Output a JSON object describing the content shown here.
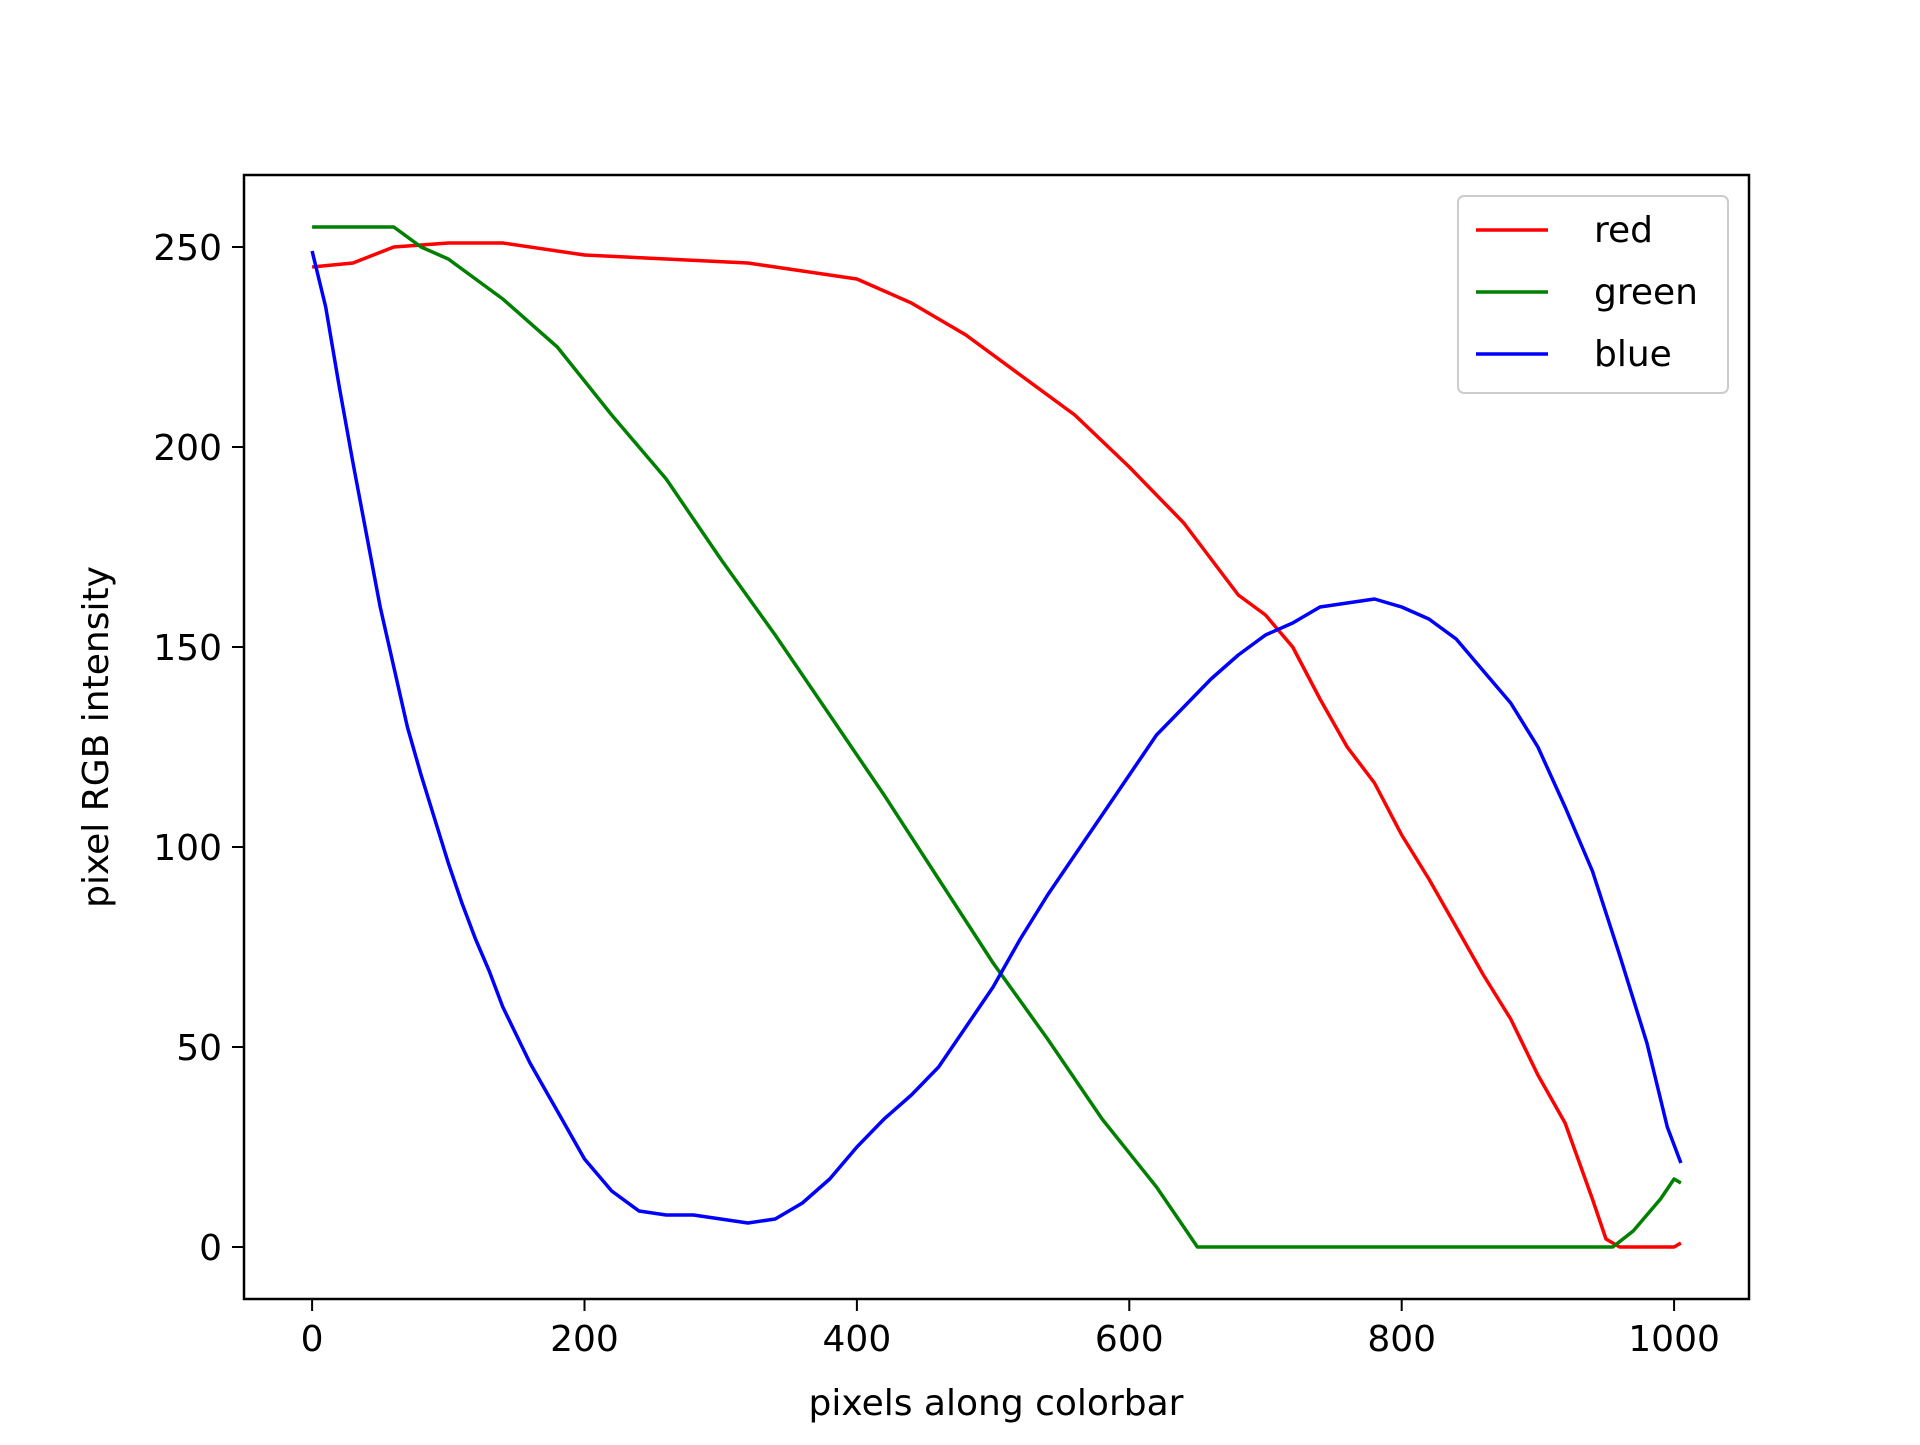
{
  "chart_data": {
    "type": "line",
    "title": "",
    "xlabel": "pixels along colorbar",
    "ylabel": "pixel RGB intensity",
    "xlim": [
      -50,
      1055
    ],
    "ylim": [
      -13,
      268
    ],
    "xticks": [
      0,
      200,
      400,
      600,
      800,
      1000
    ],
    "yticks": [
      0,
      50,
      100,
      150,
      200,
      250
    ],
    "xtick_labels": [
      "0",
      "200",
      "400",
      "600",
      "800",
      "1000"
    ],
    "ytick_labels": [
      "0",
      "50",
      "100",
      "150",
      "200",
      "250"
    ],
    "grid": false,
    "legend": {
      "position": "top-right",
      "entries": [
        "red",
        "green",
        "blue"
      ]
    },
    "series": [
      {
        "name": "red",
        "color": "#ff0000",
        "points": [
          [
            0,
            245
          ],
          [
            30,
            246
          ],
          [
            60,
            250
          ],
          [
            100,
            251
          ],
          [
            140,
            251
          ],
          [
            200,
            248
          ],
          [
            260,
            247
          ],
          [
            320,
            246
          ],
          [
            360,
            244
          ],
          [
            400,
            242
          ],
          [
            440,
            236
          ],
          [
            480,
            228
          ],
          [
            520,
            218
          ],
          [
            560,
            208
          ],
          [
            600,
            195
          ],
          [
            640,
            181
          ],
          [
            680,
            163
          ],
          [
            700,
            158
          ],
          [
            720,
            150
          ],
          [
            740,
            137
          ],
          [
            760,
            125
          ],
          [
            780,
            116
          ],
          [
            800,
            103
          ],
          [
            820,
            92
          ],
          [
            840,
            80
          ],
          [
            860,
            68
          ],
          [
            880,
            57
          ],
          [
            900,
            43
          ],
          [
            920,
            31
          ],
          [
            940,
            12
          ],
          [
            950,
            2
          ],
          [
            960,
            0
          ],
          [
            1000,
            0
          ],
          [
            1005,
            1
          ]
        ]
      },
      {
        "name": "green",
        "color": "#008000",
        "points": [
          [
            0,
            255
          ],
          [
            60,
            255
          ],
          [
            80,
            250
          ],
          [
            100,
            247
          ],
          [
            140,
            237
          ],
          [
            180,
            225
          ],
          [
            220,
            208
          ],
          [
            260,
            192
          ],
          [
            300,
            172
          ],
          [
            340,
            153
          ],
          [
            380,
            133
          ],
          [
            420,
            113
          ],
          [
            460,
            92
          ],
          [
            500,
            71
          ],
          [
            540,
            52
          ],
          [
            580,
            32
          ],
          [
            620,
            15
          ],
          [
            640,
            5
          ],
          [
            650,
            0
          ],
          [
            955,
            0
          ],
          [
            970,
            4
          ],
          [
            990,
            12
          ],
          [
            1000,
            17
          ],
          [
            1005,
            16
          ]
        ]
      },
      {
        "name": "blue",
        "color": "#0000ff",
        "points": [
          [
            0,
            249
          ],
          [
            10,
            235
          ],
          [
            20,
            215
          ],
          [
            30,
            196
          ],
          [
            40,
            178
          ],
          [
            50,
            160
          ],
          [
            60,
            145
          ],
          [
            70,
            130
          ],
          [
            80,
            118
          ],
          [
            90,
            107
          ],
          [
            100,
            96
          ],
          [
            110,
            86
          ],
          [
            120,
            77
          ],
          [
            130,
            69
          ],
          [
            140,
            60
          ],
          [
            150,
            53
          ],
          [
            160,
            46
          ],
          [
            170,
            40
          ],
          [
            180,
            34
          ],
          [
            190,
            28
          ],
          [
            200,
            22
          ],
          [
            210,
            18
          ],
          [
            220,
            14
          ],
          [
            240,
            9
          ],
          [
            260,
            8
          ],
          [
            280,
            8
          ],
          [
            300,
            7
          ],
          [
            320,
            6
          ],
          [
            340,
            7
          ],
          [
            360,
            11
          ],
          [
            380,
            17
          ],
          [
            400,
            25
          ],
          [
            420,
            32
          ],
          [
            440,
            38
          ],
          [
            460,
            45
          ],
          [
            480,
            55
          ],
          [
            500,
            65
          ],
          [
            520,
            77
          ],
          [
            540,
            88
          ],
          [
            560,
            98
          ],
          [
            580,
            108
          ],
          [
            600,
            118
          ],
          [
            620,
            128
          ],
          [
            640,
            135
          ],
          [
            660,
            142
          ],
          [
            680,
            148
          ],
          [
            700,
            153
          ],
          [
            720,
            156
          ],
          [
            740,
            160
          ],
          [
            760,
            161
          ],
          [
            780,
            162
          ],
          [
            800,
            160
          ],
          [
            820,
            157
          ],
          [
            840,
            152
          ],
          [
            860,
            144
          ],
          [
            880,
            136
          ],
          [
            900,
            125
          ],
          [
            920,
            110
          ],
          [
            940,
            94
          ],
          [
            960,
            73
          ],
          [
            980,
            51
          ],
          [
            995,
            30
          ],
          [
            1005,
            21
          ]
        ]
      }
    ]
  }
}
